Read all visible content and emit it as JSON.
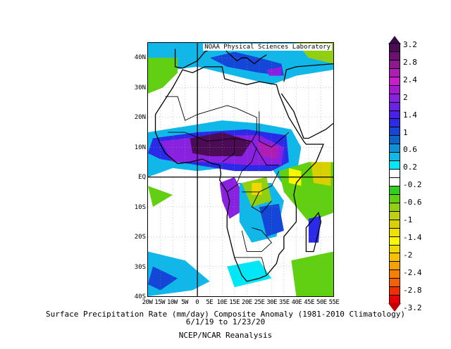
{
  "credit": "NOAA Physical Sciences Laboratory",
  "lat_labels": [
    "40N",
    "30N",
    "20N",
    "10N",
    "EQ",
    "10S",
    "20S",
    "30S",
    "40S"
  ],
  "lon_labels": [
    "20W",
    "15W",
    "10W",
    "5W",
    "0",
    "5E",
    "10E",
    "15E",
    "20E",
    "25E",
    "30E",
    "35E",
    "40E",
    "45E",
    "50E",
    "55E"
  ],
  "colorbar": {
    "labels": [
      "3.2",
      "2.8",
      "2.4",
      "2",
      "1.4",
      "1",
      "0.6",
      "0.2",
      "-0.2",
      "-0.6",
      "-1",
      "-1.4",
      "-2",
      "-2.4",
      "-2.8",
      "-3.2"
    ],
    "top_color": "#3a0848",
    "bottom_color": "#c00000",
    "colors": [
      "#4b0b55",
      "#6e0f74",
      "#8c1a8e",
      "#b01db4",
      "#c81ed0",
      "#a31ad0",
      "#8a20e0",
      "#6a22e6",
      "#4a1fe6",
      "#2a2ae8",
      "#1446d8",
      "#0a66c8",
      "#1090d8",
      "#10b8ea",
      "#00e8f8",
      "#ffffff",
      "#ffffff",
      "#30d020",
      "#60d010",
      "#90d010",
      "#c0d010",
      "#d8d000",
      "#f0e000",
      "#f8f800",
      "#f0d800",
      "#f8c000",
      "#f8a000",
      "#f88000",
      "#f86000",
      "#f03000",
      "#e80000"
    ]
  },
  "caption": {
    "title": "Surface Precipitation Rate (mm/day) Composite Anomaly (1981-2010 Climatology)",
    "dates": "6/1/19  to 1/23/20",
    "source": "NCEP/NCAR Reanalysis"
  }
}
